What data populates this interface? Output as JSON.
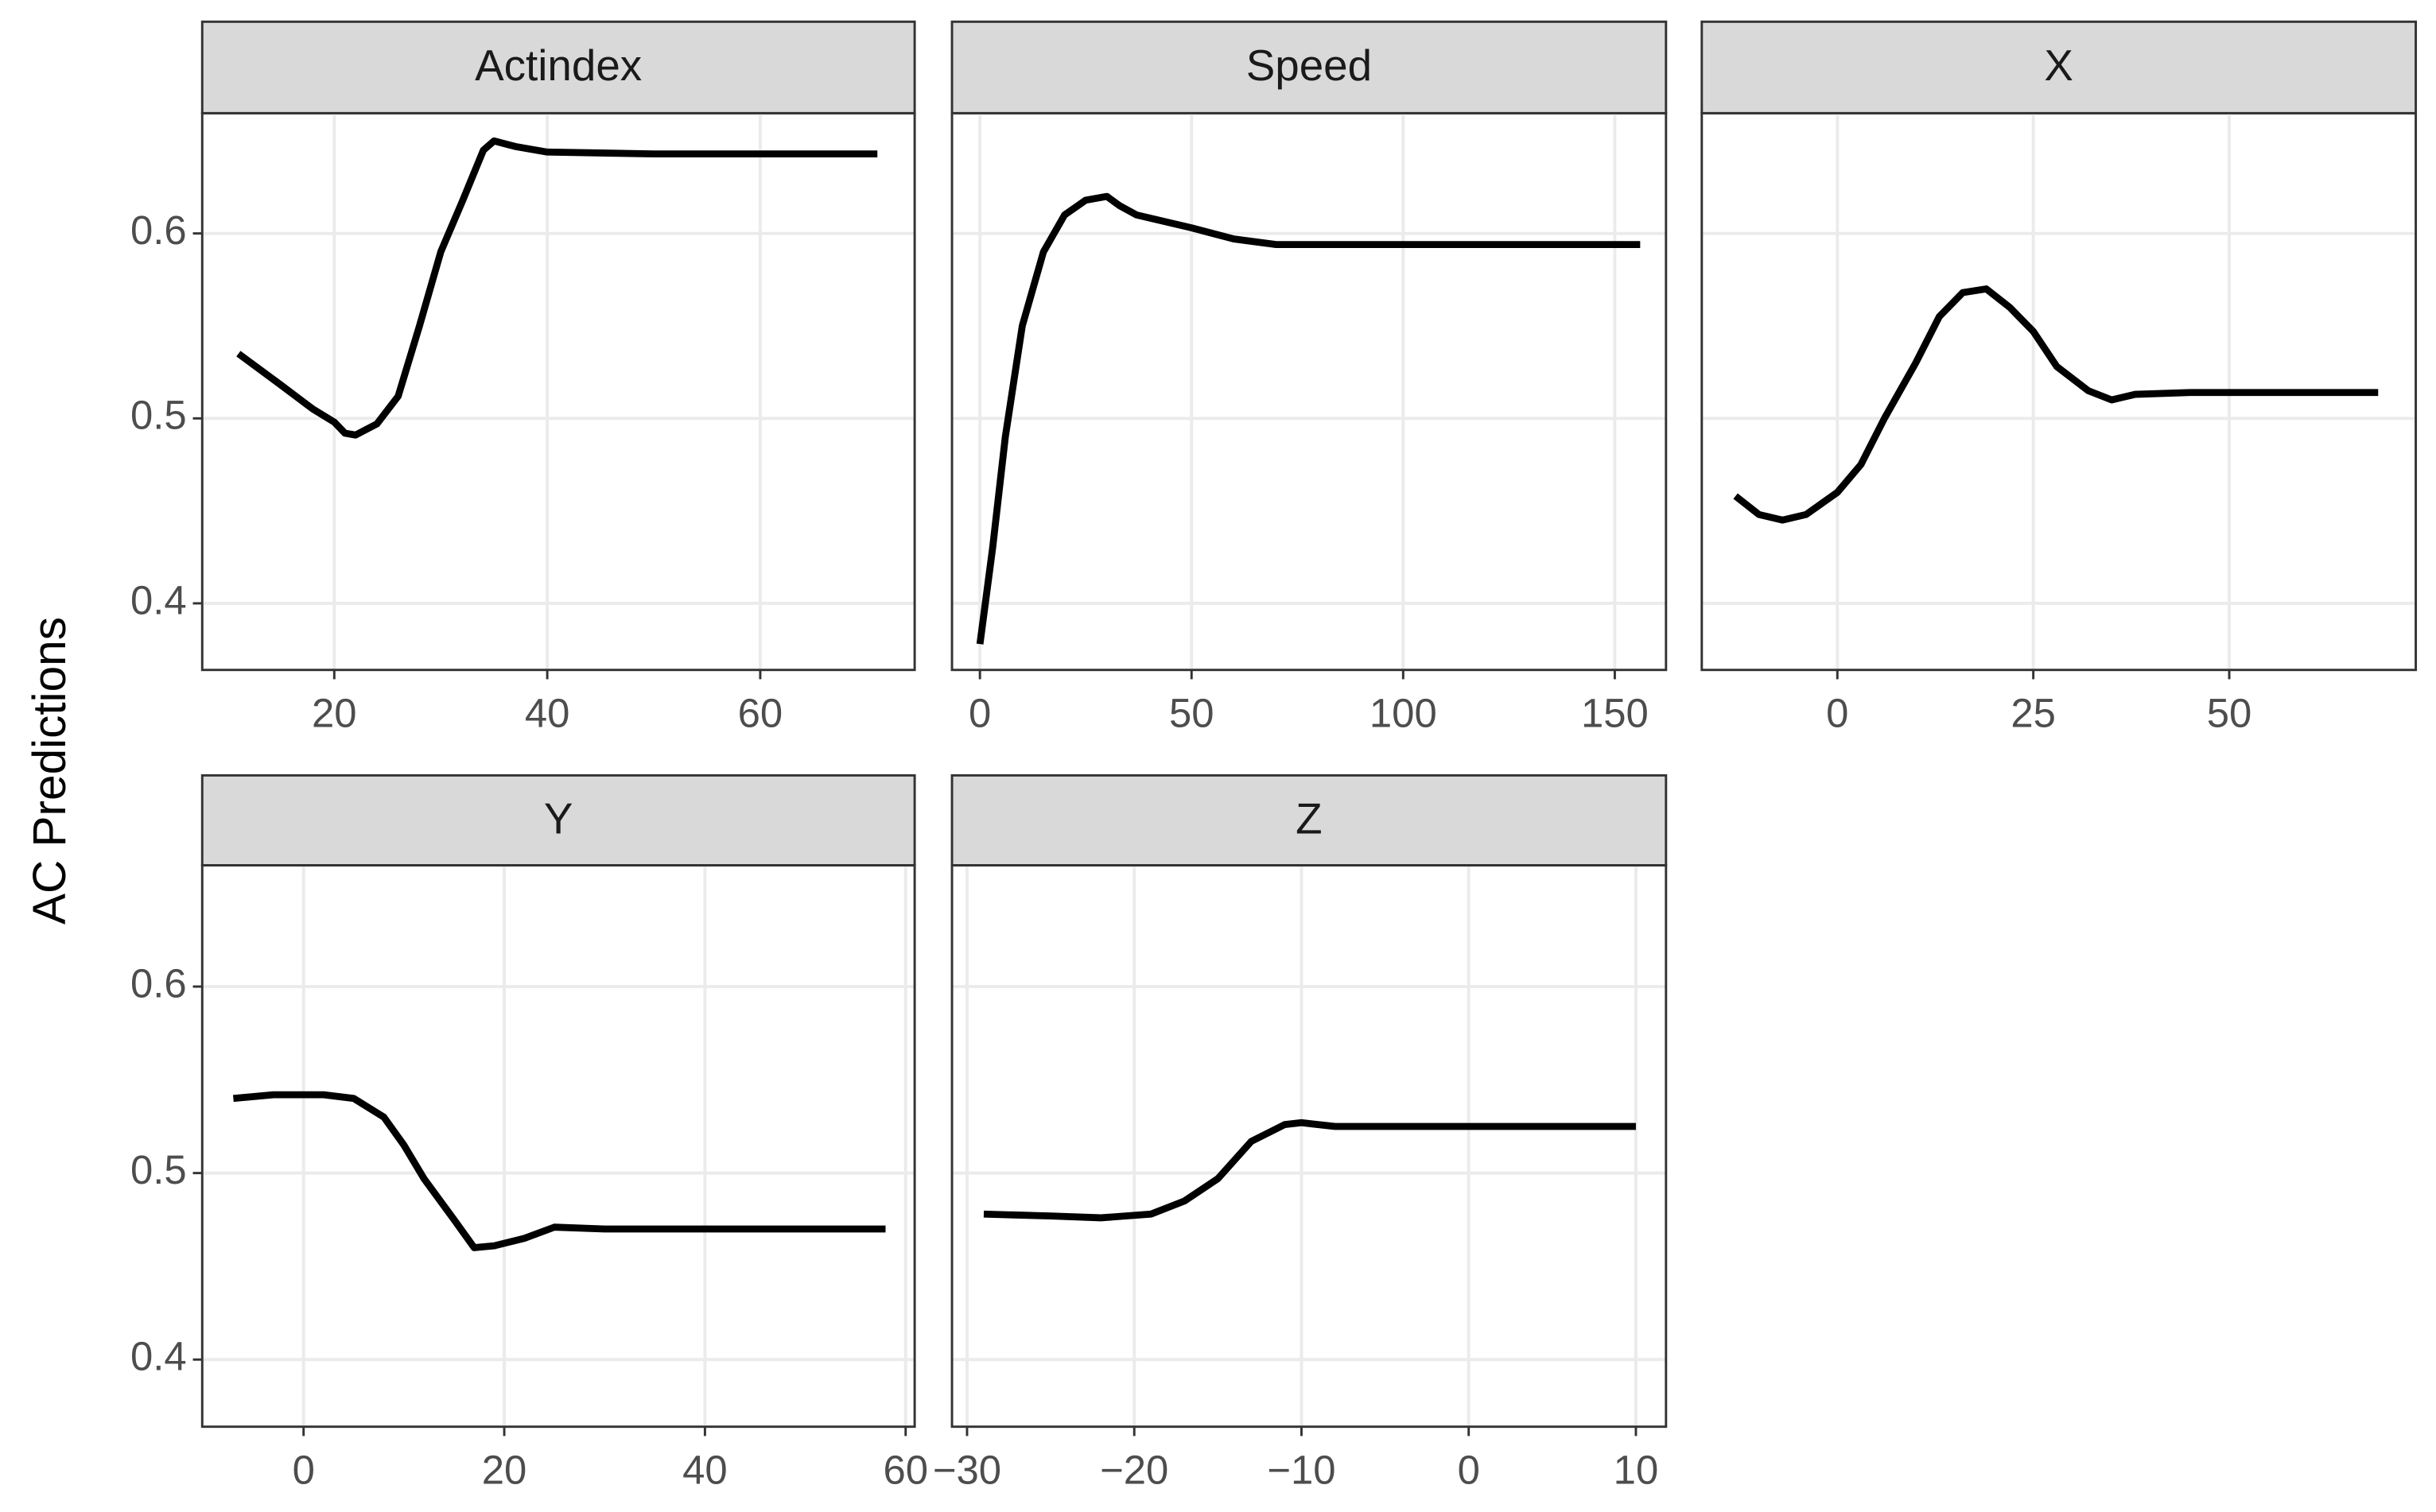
{
  "y_label": "AC Predictions",
  "chart_data": [
    {
      "type": "line",
      "title": "Actindex",
      "x": [
        11,
        15,
        18,
        20,
        21,
        22,
        24,
        26,
        28,
        30,
        32,
        34,
        35,
        37,
        40,
        50,
        71
      ],
      "values": [
        0.535,
        0.518,
        0.505,
        0.498,
        0.492,
        0.491,
        0.497,
        0.512,
        0.55,
        0.59,
        0.617,
        0.645,
        0.65,
        0.647,
        0.644,
        0.643,
        0.643
      ],
      "color": "#000000",
      "xlim": [
        7.6,
        74.5
      ],
      "xticks": [
        20,
        40,
        60
      ],
      "ylim": [
        0.364,
        0.665
      ],
      "yticks": [
        0.4,
        0.5,
        0.6
      ],
      "grid": true
    },
    {
      "type": "line",
      "title": "Speed",
      "x": [
        0,
        3,
        6,
        10,
        15,
        20,
        25,
        30,
        33,
        37,
        50,
        60,
        70,
        100,
        156
      ],
      "values": [
        0.378,
        0.43,
        0.49,
        0.55,
        0.59,
        0.61,
        0.618,
        0.62,
        0.615,
        0.61,
        0.603,
        0.597,
        0.594,
        0.594,
        0.594
      ],
      "color": "#000000",
      "xlim": [
        -6.6,
        162.1
      ],
      "xticks": [
        0,
        50,
        100,
        150
      ],
      "ylim": [
        0.364,
        0.665
      ],
      "yticks": [
        0.4,
        0.5,
        0.6
      ],
      "grid": true
    },
    {
      "type": "line",
      "title": "X",
      "x": [
        -13,
        -10,
        -7,
        -4,
        0,
        3,
        6,
        10,
        13,
        16,
        19,
        22,
        25,
        28,
        32,
        35,
        38,
        45,
        69
      ],
      "values": [
        0.458,
        0.448,
        0.445,
        0.448,
        0.46,
        0.475,
        0.5,
        0.53,
        0.555,
        0.568,
        0.57,
        0.56,
        0.547,
        0.528,
        0.515,
        0.51,
        0.513,
        0.514,
        0.514
      ],
      "color": "#000000",
      "xlim": [
        -17.3,
        73.8
      ],
      "xticks": [
        0,
        25,
        50
      ],
      "ylim": [
        0.364,
        0.665
      ],
      "yticks": [
        0.4,
        0.5,
        0.6
      ],
      "grid": true
    },
    {
      "type": "line",
      "title": "Y",
      "x": [
        -7,
        -3,
        2,
        5,
        8,
        10,
        12,
        15,
        17,
        19,
        22,
        25,
        30,
        58
      ],
      "values": [
        0.54,
        0.542,
        0.542,
        0.54,
        0.53,
        0.515,
        0.497,
        0.475,
        0.46,
        0.461,
        0.465,
        0.471,
        0.47,
        0.47
      ],
      "color": "#000000",
      "xlim": [
        -10.1,
        60.9
      ],
      "xticks": [
        0,
        20,
        40,
        60
      ],
      "ylim": [
        0.364,
        0.665
      ],
      "yticks": [
        0.4,
        0.5,
        0.6
      ],
      "grid": true
    },
    {
      "type": "line",
      "title": "Z",
      "x": [
        -29,
        -25,
        -22,
        -19,
        -17,
        -15,
        -13,
        -11,
        -10,
        -8,
        -5,
        10
      ],
      "values": [
        0.478,
        0.477,
        0.476,
        0.478,
        0.485,
        0.497,
        0.517,
        0.526,
        0.527,
        0.525,
        0.525,
        0.525
      ],
      "color": "#000000",
      "xlim": [
        -30.9,
        11.8
      ],
      "xticks": [
        {
          "value": -30,
          "label": "−30"
        },
        {
          "value": -20,
          "label": "−20"
        },
        {
          "value": -10,
          "label": "−10"
        },
        0,
        10
      ],
      "ylim": [
        0.364,
        0.665
      ],
      "yticks": [
        0.4,
        0.5,
        0.6
      ],
      "grid": true
    }
  ]
}
